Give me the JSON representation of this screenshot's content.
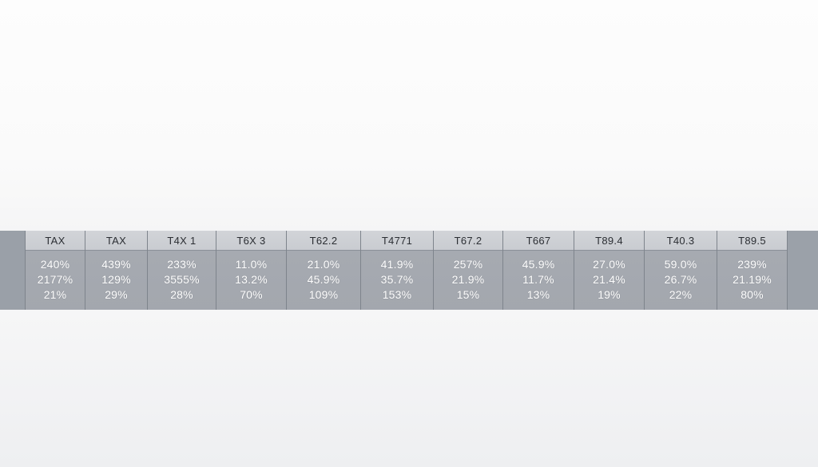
{
  "table": {
    "columns": [
      {
        "header": "TAX",
        "values": [
          "240%",
          "2177%",
          "21%"
        ]
      },
      {
        "header": "TAX",
        "values": [
          "439%",
          "129%",
          "29%"
        ]
      },
      {
        "header": "T4X 1",
        "values": [
          "233%",
          "3555%",
          "28%"
        ]
      },
      {
        "header": "T6X 3",
        "values": [
          "11.0%",
          "13.2%",
          "70%"
        ]
      },
      {
        "header": "T62.2",
        "values": [
          "21.0%",
          "45.9%",
          "109%"
        ]
      },
      {
        "header": "T4771",
        "values": [
          "41.9%",
          "35.7%",
          "153%"
        ]
      },
      {
        "header": "T67.2",
        "values": [
          "257%",
          "21.9%",
          "15%"
        ]
      },
      {
        "header": "T667",
        "values": [
          "45.9%",
          "11.7%",
          "13%"
        ]
      },
      {
        "header": "T89.4",
        "values": [
          "27.0%",
          "21.4%",
          "19%"
        ]
      },
      {
        "header": "T40.3",
        "values": [
          "59.0%",
          "26.7%",
          "22%"
        ]
      },
      {
        "header": "T89.5",
        "values": [
          "239%",
          "21.19%",
          "80%"
        ]
      }
    ]
  },
  "colors": {
    "band": "#a5a9b0",
    "header_bg": "#cfd2d6",
    "header_text": "#2b2e33",
    "value_text": "#ffffff",
    "page_bg": "#fafafa"
  }
}
